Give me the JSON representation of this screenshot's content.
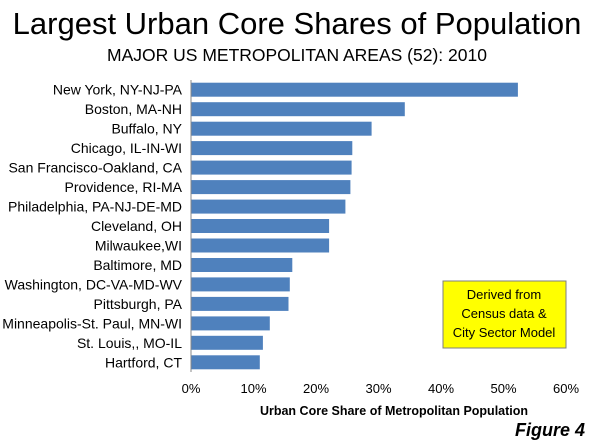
{
  "chart_data": {
    "type": "bar",
    "orientation": "horizontal",
    "title": "Largest Urban Core Shares of Population",
    "subtitle": "MAJOR US METROPOLITAN AREAS (52): 2010",
    "xlabel": "Urban Core Share of Metropolitan Population",
    "ylabel": "",
    "categories": [
      "New York, NY-NJ-PA",
      "Boston, MA-NH",
      "Buffalo, NY",
      "Chicago, IL-IN-WI",
      "San Francisco-Oakland, CA",
      "Providence, RI-MA",
      "Philadelphia, PA-NJ-DE-MD",
      "Cleveland, OH",
      "Milwaukee,WI",
      "Baltimore, MD",
      "Washington, DC-VA-MD-WV",
      "Pittsburgh, PA",
      "Minneapolis-St. Paul, MN-WI",
      "St. Louis,, MO-IL",
      "Hartford, CT"
    ],
    "values": [
      52.3,
      34.2,
      28.9,
      25.8,
      25.7,
      25.5,
      24.7,
      22.1,
      22.1,
      16.2,
      15.8,
      15.6,
      12.6,
      11.5,
      11.0
    ],
    "xlim": [
      0,
      60
    ],
    "ticks": [
      "0%",
      "10%",
      "20%",
      "30%",
      "40%",
      "50%",
      "60%"
    ],
    "grid": false,
    "bar_color": "#4f81bd",
    "annotation": {
      "lines": [
        "Derived from",
        "Census data &",
        "City Sector Model"
      ],
      "background": "#ffff00",
      "border": "#7f7f7f"
    },
    "figure_label": "Figure 4"
  }
}
